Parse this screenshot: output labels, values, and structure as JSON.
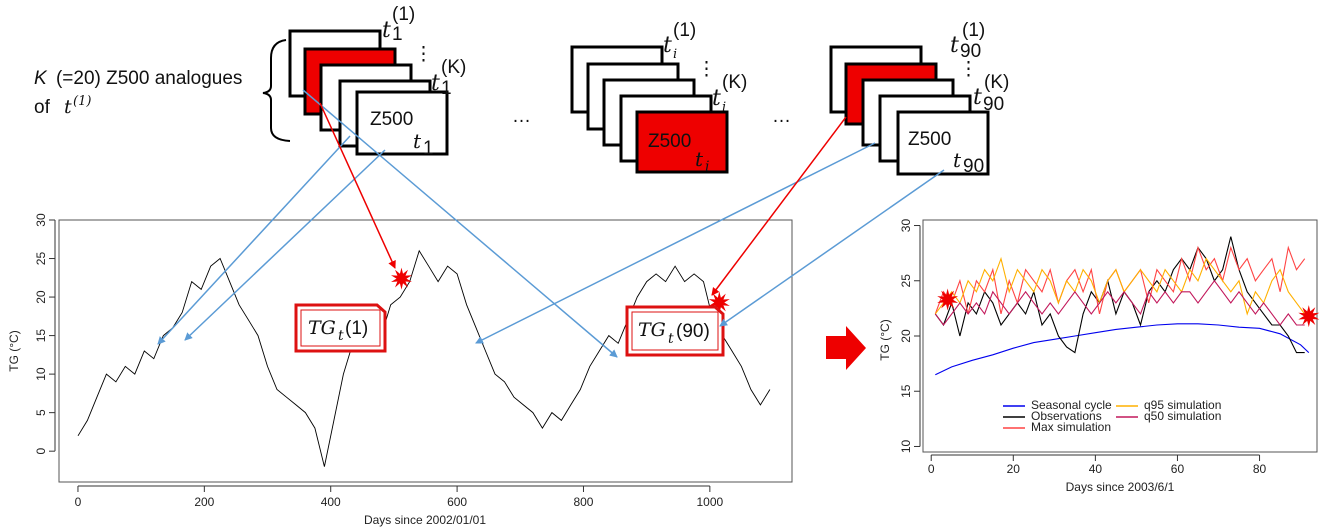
{
  "diagram": {
    "analogue_label": {
      "k": "K",
      "rest": "(=20) Z500 analogues",
      "of": "of",
      "t": "t",
      "t_sup": "(1)"
    },
    "ellipsis": "…",
    "vert_dots": "⋮",
    "stacks": [
      {
        "id": "stack1",
        "top_label": "t",
        "top_sub": "1",
        "top_sup": "(1)",
        "k_label": "t",
        "k_sub": "1",
        "k_sup": "(K)",
        "front_text": "Z500",
        "front_sub": "t",
        "front_subsub": "1"
      },
      {
        "id": "stacki",
        "top_label": "t",
        "top_sub": "i",
        "top_sup": "(1)",
        "k_label": "t",
        "k_sub": "i",
        "k_sup": "(K)",
        "front_text": "Z500",
        "front_sub": "t",
        "front_subsub": "i"
      },
      {
        "id": "stack90",
        "top_label": "t",
        "top_sub": "90",
        "top_sup": "(1)",
        "k_label": "t",
        "k_sub": "90",
        "k_sup": "(K)",
        "front_text": "Z500",
        "front_sub": "t",
        "front_subsub": "90"
      }
    ],
    "tg_labels": [
      {
        "tg": "TG",
        "sub": "t",
        "sup": "(1)"
      },
      {
        "tg": "TG",
        "sub": "t",
        "sup": "(90)"
      }
    ],
    "colors": {
      "red": "#ee0000",
      "blue": "#5b9bd5",
      "black": "#000000",
      "arrow_big": "#ee0000"
    }
  },
  "chart_data": [
    {
      "type": "line",
      "xlabel": "Days since 2002/01/01",
      "ylabel": "TG (°C)",
      "xlim": [
        -30,
        1130
      ],
      "ylim": [
        -4,
        30
      ],
      "xticks": [
        0,
        200,
        400,
        600,
        800,
        1000
      ],
      "yticks": [
        0,
        5,
        10,
        15,
        20,
        25,
        30
      ],
      "series": [
        {
          "color": "#000000",
          "x": [
            0,
            15,
            30,
            45,
            60,
            75,
            90,
            105,
            120,
            135,
            150,
            165,
            180,
            195,
            210,
            225,
            240,
            255,
            270,
            285,
            300,
            315,
            330,
            345,
            360,
            375,
            390,
            405,
            420,
            435,
            450,
            465,
            480,
            495,
            510,
            525,
            540,
            555,
            570,
            585,
            600,
            615,
            630,
            645,
            660,
            675,
            690,
            705,
            720,
            735,
            750,
            765,
            780,
            795,
            810,
            825,
            840,
            855,
            870,
            885,
            900,
            915,
            930,
            945,
            960,
            975,
            990,
            1005,
            1020,
            1035,
            1050,
            1065,
            1080,
            1095
          ],
          "y": [
            2,
            4,
            7,
            10,
            9,
            11,
            10,
            13,
            12,
            15,
            16,
            18,
            22,
            21,
            24,
            25,
            22,
            19,
            17,
            15,
            11,
            8,
            7,
            6,
            5,
            3,
            -2,
            4,
            10,
            14,
            16,
            17,
            15,
            19,
            20,
            22,
            26,
            24,
            22,
            24,
            23,
            19,
            16,
            13,
            10,
            9,
            7,
            6,
            5,
            3,
            5,
            4,
            6,
            8,
            11,
            13,
            15,
            14,
            17,
            20,
            22,
            23,
            22,
            24,
            22,
            23,
            22,
            17,
            15,
            13,
            11,
            8,
            6,
            8
          ]
        }
      ],
      "markers": [
        {
          "x": 512,
          "y": 22.4
        },
        {
          "x": 1015,
          "y": 19.3
        }
      ]
    },
    {
      "type": "line",
      "xlabel": "Days since 2003/6/1",
      "ylabel": "TG (°C)",
      "xlim": [
        -2,
        94
      ],
      "ylim": [
        9.5,
        30.5
      ],
      "xticks": [
        0,
        20,
        40,
        60,
        80
      ],
      "yticks": [
        10,
        15,
        20,
        25,
        30
      ],
      "series": [
        {
          "name": "Seasonal cycle",
          "color": "#0000ee",
          "x": [
            1,
            5,
            10,
            15,
            20,
            25,
            30,
            35,
            40,
            45,
            50,
            55,
            60,
            65,
            70,
            75,
            80,
            85,
            90,
            92
          ],
          "y": [
            16.5,
            17.2,
            17.8,
            18.3,
            18.9,
            19.4,
            19.7,
            20,
            20.3,
            20.6,
            20.8,
            21,
            21.1,
            21.1,
            21,
            20.8,
            20.7,
            20.2,
            19.2,
            18.5
          ]
        },
        {
          "name": "Observations",
          "color": "#000000",
          "x": [
            1,
            3,
            5,
            7,
            9,
            11,
            13,
            15,
            17,
            19,
            21,
            23,
            25,
            27,
            29,
            31,
            33,
            35,
            37,
            39,
            41,
            43,
            45,
            47,
            49,
            51,
            53,
            55,
            57,
            59,
            61,
            63,
            65,
            67,
            69,
            71,
            73,
            75,
            77,
            79,
            81,
            83,
            85,
            87,
            89,
            91
          ],
          "y": [
            22,
            21,
            23,
            20,
            23,
            22,
            24,
            23,
            21,
            22,
            23,
            22,
            24,
            21,
            22,
            20,
            19,
            18.5,
            22,
            24,
            23,
            25,
            22,
            24,
            23,
            21,
            24,
            25,
            24,
            26,
            27,
            26,
            28,
            27,
            25,
            26,
            29,
            26,
            24,
            23,
            22,
            21,
            21,
            20,
            18.5,
            18.5
          ]
        },
        {
          "name": "Max simulation",
          "color": "#ff4444",
          "x": [
            1,
            3,
            5,
            7,
            9,
            11,
            13,
            15,
            17,
            19,
            21,
            23,
            25,
            27,
            29,
            31,
            33,
            35,
            37,
            39,
            41,
            43,
            45,
            47,
            49,
            51,
            53,
            55,
            57,
            59,
            61,
            63,
            65,
            67,
            69,
            71,
            73,
            75,
            77,
            79,
            81,
            83,
            85,
            87,
            89,
            91
          ],
          "y": [
            22,
            24,
            23,
            25,
            22,
            25,
            24,
            26,
            22,
            25,
            23,
            26,
            25,
            24,
            26,
            23,
            25,
            26,
            24,
            26,
            22,
            25,
            26,
            24,
            25,
            26,
            23,
            26,
            25,
            24,
            27,
            25,
            28,
            26,
            27,
            25,
            28,
            26,
            27,
            25,
            26,
            27,
            24,
            28,
            26,
            27
          ]
        },
        {
          "name": "q95 simulation",
          "color": "#ffb000",
          "x": [
            1,
            3,
            5,
            7,
            9,
            11,
            13,
            15,
            17,
            19,
            21,
            23,
            25,
            27,
            29,
            31,
            33,
            35,
            37,
            39,
            41,
            43,
            45,
            47,
            49,
            51,
            53,
            55,
            57,
            59,
            61,
            63,
            65,
            67,
            69,
            71,
            73,
            75,
            77,
            79,
            81,
            83,
            85,
            87,
            89,
            91
          ],
          "y": [
            22,
            23,
            24,
            23,
            25,
            24,
            26,
            25,
            27,
            24,
            26,
            25,
            24,
            26,
            25,
            23,
            25,
            24,
            26,
            25,
            23,
            25,
            26,
            24,
            25,
            26,
            25,
            24,
            26,
            25,
            24,
            26,
            25,
            27,
            26,
            25,
            24,
            25,
            22,
            24,
            23,
            25,
            26,
            24,
            23,
            22
          ]
        },
        {
          "name": "q50 simulation",
          "color": "#c2185b",
          "x": [
            1,
            3,
            5,
            7,
            9,
            11,
            13,
            15,
            17,
            19,
            21,
            23,
            25,
            27,
            29,
            31,
            33,
            35,
            37,
            39,
            41,
            43,
            45,
            47,
            49,
            51,
            53,
            55,
            57,
            59,
            61,
            63,
            65,
            67,
            69,
            71,
            73,
            75,
            77,
            79,
            81,
            83,
            85,
            87,
            89,
            91
          ],
          "y": [
            22,
            21,
            22,
            23,
            22,
            23,
            22,
            24,
            23,
            22,
            23,
            24,
            23,
            22,
            23,
            22,
            23,
            24,
            23,
            22,
            23,
            24,
            23,
            24,
            23,
            22,
            24,
            23,
            24,
            23,
            24,
            24,
            23,
            24,
            25,
            24,
            23,
            24,
            23,
            22,
            23,
            22,
            21,
            22,
            21,
            21
          ]
        }
      ],
      "markers": [
        {
          "x": 4,
          "y": 23.3
        },
        {
          "x": 92,
          "y": 21.8
        }
      ],
      "legend": {
        "placement": "bottom-center",
        "columns": [
          [
            "Seasonal cycle",
            "Observations",
            "Max simulation"
          ],
          [
            "q95 simulation",
            "q50 simulation"
          ]
        ]
      }
    }
  ]
}
